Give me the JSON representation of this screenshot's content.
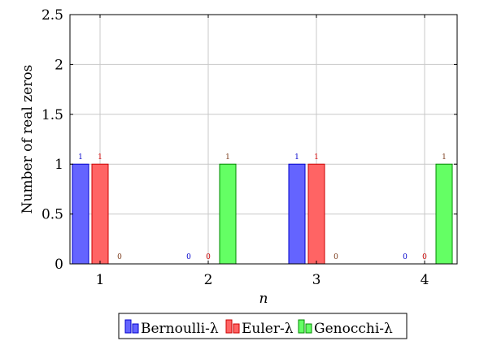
{
  "chart_data": {
    "type": "bar",
    "categories": [
      "1",
      "2",
      "3",
      "4"
    ],
    "series": [
      {
        "name": "Bernoulli-λ",
        "values": [
          1,
          0,
          1,
          0
        ],
        "labels": [
          "1",
          "0",
          "1",
          "0"
        ],
        "color": "#6464ff",
        "stroke": "#0000cc",
        "label_color": "#0000cc"
      },
      {
        "name": "Euler-λ",
        "values": [
          1,
          0,
          1,
          0
        ],
        "labels": [
          "1",
          "0",
          "1",
          "0"
        ],
        "color": "#ff6464",
        "stroke": "#cc0000",
        "label_color": "#cc0000"
      },
      {
        "name": "Genocchi-λ",
        "values": [
          0,
          1,
          0,
          1
        ],
        "labels": [
          "0",
          "1",
          "0",
          "1"
        ],
        "color": "#64ff64",
        "stroke": "#008800",
        "label_color": "#7a3a1a"
      }
    ],
    "xlabel": "n",
    "ylabel": "Number of real zeros",
    "ylim": [
      0,
      2.5
    ],
    "yticks": [
      "0",
      "0.5",
      "1",
      "1.5",
      "2",
      "2.5"
    ],
    "grid": true,
    "legend_position": "bottom"
  }
}
